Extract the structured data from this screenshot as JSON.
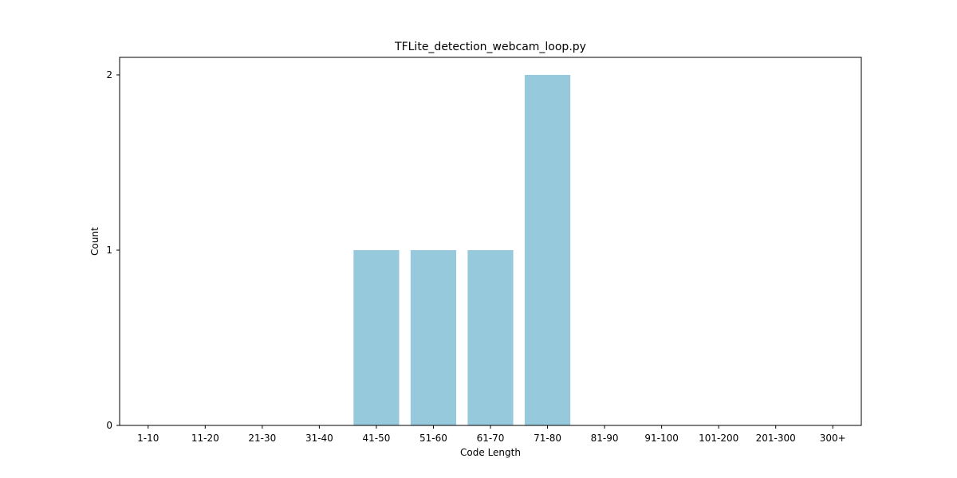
{
  "chart_data": {
    "type": "bar",
    "title": "TFLite_detection_webcam_loop.py",
    "xlabel": "Code Length",
    "ylabel": "Count",
    "categories": [
      "1-10",
      "11-20",
      "21-30",
      "31-40",
      "41-50",
      "51-60",
      "61-70",
      "71-80",
      "81-90",
      "91-100",
      "101-200",
      "201-300",
      "300+"
    ],
    "values": [
      0,
      0,
      0,
      0,
      1,
      1,
      1,
      2,
      0,
      0,
      0,
      0,
      0
    ],
    "ylim": [
      0,
      2.1
    ],
    "yticks": [
      0,
      1,
      2
    ],
    "grid": false,
    "legend": "none",
    "bar_color": "#96c9dc"
  }
}
